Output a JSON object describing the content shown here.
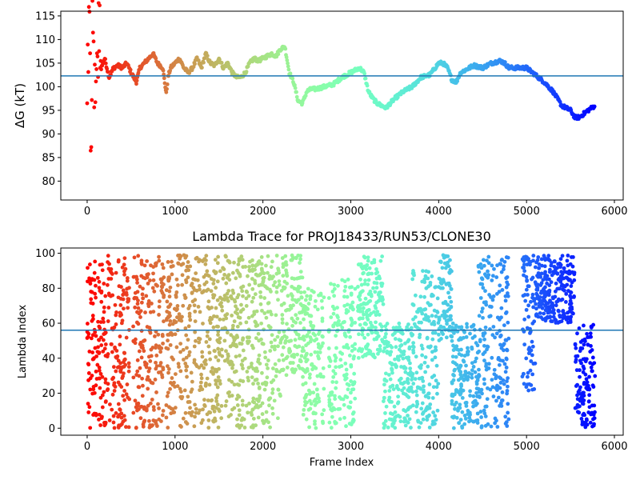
{
  "chart_data": [
    {
      "type": "scatter",
      "title": "",
      "xlabel": "",
      "ylabel": "ΔG (kT)",
      "xlim": [
        -300,
        6100
      ],
      "ylim": [
        76,
        116
      ],
      "xticks": [
        0,
        1000,
        2000,
        3000,
        4000,
        5000,
        6000
      ],
      "yticks": [
        80,
        85,
        90,
        95,
        100,
        105,
        110,
        115
      ],
      "hline": 102.3,
      "hline_color": "#1f77b4",
      "colormap": "rainbow (red at frame 0 → violet at last frame)",
      "grid": false,
      "series": [
        {
          "x": [
            0,
            20,
            40,
            60,
            80,
            100,
            130,
            160,
            200,
            250,
            300,
            350,
            400,
            450,
            500,
            560,
            600,
            650,
            700,
            750,
            800,
            860,
            900,
            920,
            950,
            1000,
            1050,
            1100,
            1150,
            1200,
            1250,
            1300,
            1350,
            1400,
            1450,
            1500,
            1550,
            1600,
            1650,
            1700,
            1750,
            1800,
            1850,
            1900,
            1950,
            2000,
            2050,
            2100,
            2150,
            2200,
            2250,
            2300,
            2350,
            2400,
            2450,
            2500,
            2550,
            2600,
            2700,
            2800,
            2900,
            3000,
            3050,
            3100,
            3150,
            3200,
            3250,
            3300,
            3350,
            3400,
            3500,
            3600,
            3700,
            3800,
            3900,
            4000,
            4050,
            4100,
            4150,
            4200,
            4250,
            4300,
            4350,
            4400,
            4500,
            4600,
            4700,
            4750,
            4800,
            4900,
            5000,
            5100,
            5200,
            5300,
            5400,
            5500,
            5550,
            5600,
            5700,
            5780
          ],
          "y": [
            100,
            110,
            92,
            112,
            98,
            107,
            111,
            104,
            106,
            102,
            104,
            104.5,
            104,
            105,
            103,
            101,
            104,
            105,
            106,
            107,
            105,
            104,
            98.5,
            102,
            104,
            105,
            106,
            104,
            103,
            104,
            106,
            104,
            107,
            105,
            104.5,
            106,
            104,
            105,
            103,
            102,
            102,
            103,
            105,
            106,
            105.5,
            106,
            106.5,
            107,
            106.5,
            108,
            108.5,
            103,
            101,
            97,
            96.5,
            99,
            99.5,
            99.5,
            100,
            100.5,
            102,
            103,
            103.5,
            104,
            103,
            99,
            97.5,
            96.5,
            96,
            95.5,
            97.5,
            99,
            100,
            102,
            102.5,
            105,
            105,
            104,
            101.5,
            101,
            103,
            103.5,
            104,
            104.5,
            104,
            105,
            105.5,
            105,
            104,
            104,
            104,
            102.5,
            101,
            99,
            96,
            95,
            93.5,
            93.5,
            95,
            96
          ]
        }
      ]
    },
    {
      "type": "scatter",
      "title": "Lambda Trace for PROJ18433/RUN53/CLONE30",
      "xlabel": "Frame Index",
      "ylabel": "Lambda Index",
      "xlim": [
        -300,
        6100
      ],
      "ylim": [
        -4,
        103
      ],
      "xticks": [
        0,
        1000,
        2000,
        3000,
        4000,
        5000,
        6000
      ],
      "yticks": [
        0,
        20,
        40,
        60,
        80,
        100
      ],
      "hline": 56,
      "hline_color": "#1f77b4",
      "colormap": "rainbow (red at frame 0 → violet at last frame)",
      "grid": false,
      "series": [
        {
          "x_range": [
            0,
            5780
          ],
          "y_range": [
            0,
            99
          ],
          "blocks": [
            {
              "x": [
                0,
                150
              ],
              "y": [
                0,
                99
              ]
            },
            {
              "x": [
                150,
                480
              ],
              "y": [
                0,
                99
              ]
            },
            {
              "x": [
                520,
                880
              ],
              "y": [
                0,
                99
              ]
            },
            {
              "x": [
                900,
                1200
              ],
              "y": [
                0,
                99
              ]
            },
            {
              "x": [
                1200,
                1500
              ],
              "y": [
                0,
                99
              ]
            },
            {
              "x": [
                1500,
                1900
              ],
              "y": [
                0,
                99
              ]
            },
            {
              "x": [
                1900,
                2200
              ],
              "y": [
                0,
                99
              ]
            },
            {
              "x": [
                2200,
                2450
              ],
              "y": [
                30,
                99
              ]
            },
            {
              "x": [
                2450,
                2700
              ],
              "y": [
                0,
                80
              ]
            },
            {
              "x": [
                2750,
                3050
              ],
              "y": [
                0,
                85
              ]
            },
            {
              "x": [
                3080,
                3370
              ],
              "y": [
                40,
                99
              ]
            },
            {
              "x": [
                3370,
                3700
              ],
              "y": [
                0,
                60
              ]
            },
            {
              "x": [
                3700,
                4000
              ],
              "y": [
                0,
                90
              ]
            },
            {
              "x": [
                4000,
                4150
              ],
              "y": [
                50,
                99
              ]
            },
            {
              "x": [
                4150,
                4450
              ],
              "y": [
                0,
                60
              ]
            },
            {
              "x": [
                4450,
                4800
              ],
              "y": [
                0,
                99
              ]
            },
            {
              "x": [
                4950,
                5100
              ],
              "y": [
                20,
                99
              ]
            },
            {
              "x": [
                5100,
                5550
              ],
              "y": [
                60,
                99
              ]
            },
            {
              "x": [
                5550,
                5780
              ],
              "y": [
                0,
                60
              ]
            }
          ]
        }
      ]
    }
  ]
}
